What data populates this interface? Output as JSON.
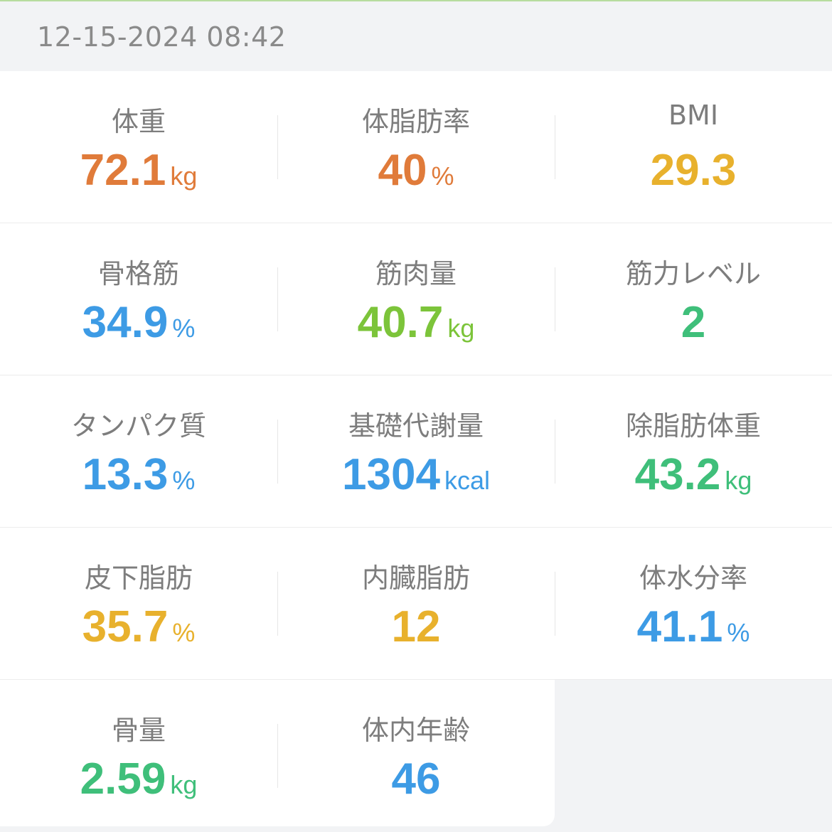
{
  "header": {
    "timestamp": "12-15-2024 08:42"
  },
  "metrics": [
    {
      "label": "体重",
      "value": "72.1",
      "unit": "kg",
      "color": "#e07b3a"
    },
    {
      "label": "体脂肪率",
      "value": "40",
      "unit": "%",
      "color": "#e07b3a"
    },
    {
      "label": "BMI",
      "value": "29.3",
      "unit": "",
      "color": "#e8b12d"
    },
    {
      "label": "骨格筋",
      "value": "34.9",
      "unit": "%",
      "color": "#3d9be5"
    },
    {
      "label": "筋肉量",
      "value": "40.7",
      "unit": "kg",
      "color": "#7cc43a"
    },
    {
      "label": "筋力レベル",
      "value": "2",
      "unit": "",
      "color": "#3fbf7a"
    },
    {
      "label": "タンパク質",
      "value": "13.3",
      "unit": "%",
      "color": "#3d9be5"
    },
    {
      "label": "基礎代謝量",
      "value": "1304",
      "unit": "kcal",
      "color": "#3d9be5"
    },
    {
      "label": "除脂肪体重",
      "value": "43.2",
      "unit": "kg",
      "color": "#3fbf7a"
    },
    {
      "label": "皮下脂肪",
      "value": "35.7",
      "unit": "%",
      "color": "#e8b12d"
    },
    {
      "label": "内臓脂肪",
      "value": "12",
      "unit": "",
      "color": "#e8b12d"
    },
    {
      "label": "体水分率",
      "value": "41.1",
      "unit": "%",
      "color": "#3d9be5"
    },
    {
      "label": "骨量",
      "value": "2.59",
      "unit": "kg",
      "color": "#3fbf7a"
    },
    {
      "label": "体内年齢",
      "value": "46",
      "unit": "",
      "color": "#3d9be5"
    }
  ]
}
